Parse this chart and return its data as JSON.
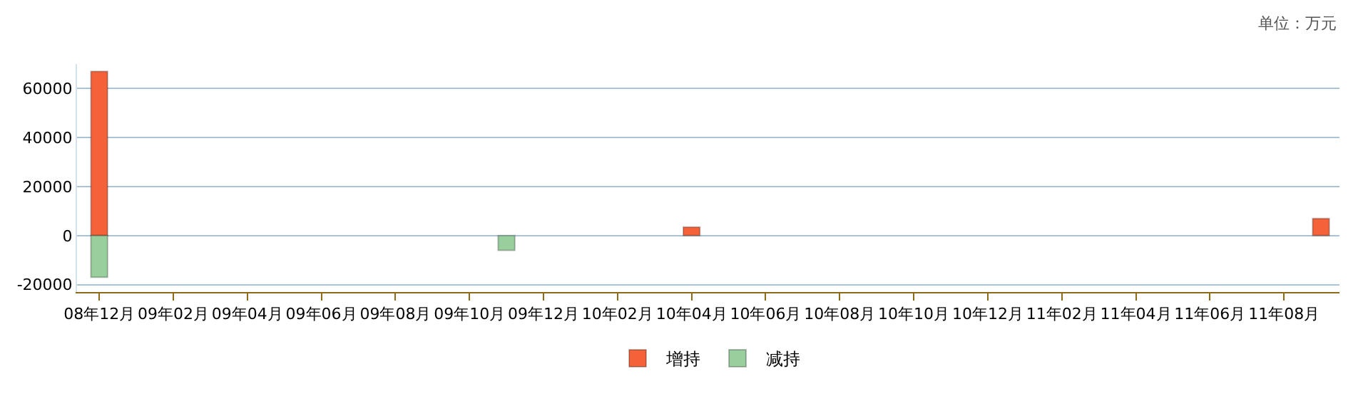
{
  "chart_data": {
    "type": "bar",
    "annotations": [
      "单位：万元"
    ],
    "categories": [
      "08年12月",
      null,
      "09年02月",
      null,
      "09年04月",
      null,
      "09年06月",
      null,
      "09年08月",
      null,
      "09年10月",
      null,
      "09年12月",
      null,
      "10年02月",
      null,
      "10年04月",
      null,
      "10年06月",
      null,
      "10年08月",
      null,
      "10年10月",
      null,
      "10年12月",
      null,
      "11年02月",
      null,
      "11年04月",
      null,
      "11年06月",
      null,
      "11年08月",
      null
    ],
    "series": [
      {
        "name": "增持",
        "color": "#f4623a",
        "values": [
          67000,
          null,
          null,
          null,
          null,
          null,
          null,
          null,
          null,
          null,
          null,
          null,
          null,
          null,
          null,
          null,
          3500,
          null,
          null,
          null,
          null,
          null,
          null,
          null,
          null,
          null,
          null,
          null,
          null,
          null,
          null,
          null,
          null,
          7000
        ]
      },
      {
        "name": "减持",
        "color": "#98cf9c",
        "values": [
          -17000,
          null,
          null,
          null,
          null,
          null,
          null,
          null,
          null,
          null,
          null,
          -6000,
          null,
          null,
          null,
          null,
          null,
          null,
          null,
          null,
          null,
          null,
          null,
          null,
          null,
          null,
          null,
          null,
          null,
          null,
          null,
          null,
          null,
          null
        ]
      }
    ],
    "ylim": [
      -23000,
      70000
    ],
    "yticks": [
      -20000,
      0,
      20000,
      40000,
      60000
    ],
    "grid": "y",
    "legend": "bottom"
  }
}
